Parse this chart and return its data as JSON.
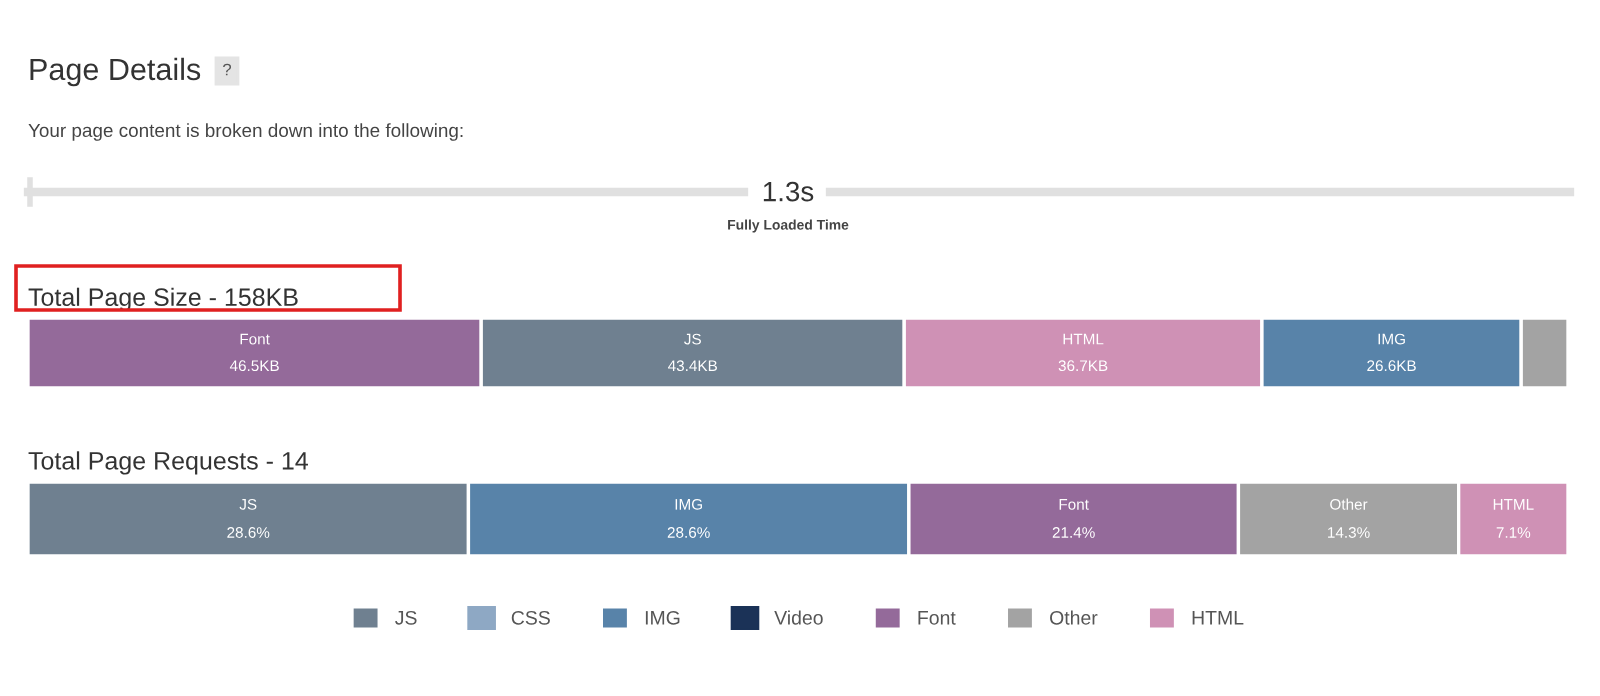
{
  "chart_data": [
    {
      "type": "other",
      "title": "Page Details",
      "subtitle": "Your page content is broken down into the following:",
      "annotations": [
        "?",
        "1.3s",
        "Fully Loaded Time"
      ]
    },
    {
      "type": "bar",
      "orientation": "horizontal",
      "stacked": true,
      "title": "Total Page Size - 158KB",
      "categories": [
        null
      ],
      "series": [
        {
          "name": "Font",
          "color": "#946a9a",
          "values": [
            46.5
          ],
          "value_labels": [
            "46.5KB"
          ]
        },
        {
          "name": "JS",
          "color": "#6f8090",
          "values": [
            43.4
          ],
          "value_labels": [
            "43.4KB"
          ]
        },
        {
          "name": "HTML",
          "color": "#cf91b5",
          "values": [
            36.7
          ],
          "value_labels": [
            "36.7KB"
          ]
        },
        {
          "name": "IMG",
          "color": "#5883a9",
          "values": [
            26.6
          ],
          "value_labels": [
            "26.6KB"
          ]
        },
        {
          "color": "#a3a3a3",
          "values": [
            4.8
          ],
          "value_labels": [
            null
          ]
        }
      ]
    },
    {
      "type": "bar",
      "orientation": "horizontal",
      "stacked": true,
      "title": "Total Page Requests - 14",
      "categories": [
        null
      ],
      "legend": "bottom",
      "series": [
        {
          "name": "JS",
          "color": "#6f8090",
          "values": [
            28.6
          ],
          "value_labels": [
            "28.6%"
          ]
        },
        {
          "name": "CSS",
          "color": "#8ea8c4",
          "values": [
            null
          ],
          "value_labels": [
            null
          ]
        },
        {
          "name": "IMG",
          "color": "#5883a9",
          "values": [
            28.6
          ],
          "value_labels": [
            "28.6%"
          ]
        },
        {
          "name": "Video",
          "color": "#1b3257",
          "values": [
            null
          ],
          "value_labels": [
            null
          ]
        },
        {
          "name": "Font",
          "color": "#946a9a",
          "values": [
            21.4
          ],
          "value_labels": [
            "21.4%"
          ]
        },
        {
          "name": "Other",
          "color": "#a3a3a3",
          "values": [
            14.3
          ],
          "value_labels": [
            "14.3%"
          ]
        },
        {
          "name": "HTML",
          "color": "#cf91b5",
          "values": [
            7.1
          ],
          "value_labels": [
            "7.1%"
          ]
        }
      ]
    }
  ]
}
